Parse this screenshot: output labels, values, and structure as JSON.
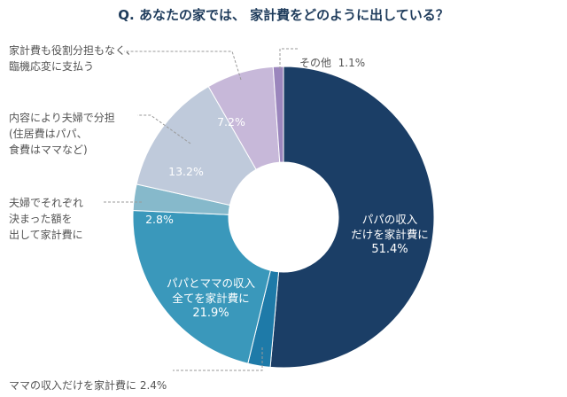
{
  "chart_data": {
    "type": "pie",
    "style": "donut",
    "title": "Q. あなたの家では、 家計費をどのように出している？",
    "slices": [
      {
        "label": "パパの収入\nだけを家計費に",
        "value": 51.4,
        "value_label": "51.4%",
        "color": "#1b3e66",
        "label_position": "inside"
      },
      {
        "label": "ママの収入だけを家計費に",
        "value": 2.4,
        "value_label": "2.4%",
        "color": "#1e7aa8",
        "label_position": "outside"
      },
      {
        "label": "パパとママの収入\n全てを家計費に",
        "value": 21.9,
        "value_label": "21.9%",
        "color": "#3a98bb",
        "label_position": "inside"
      },
      {
        "label": "夫婦でそれぞれ\n決まった額を\n出して家計費に",
        "value": 2.8,
        "value_label": "2.8%",
        "color": "#86b9cb",
        "label_position": "outside"
      },
      {
        "label": "内容により夫婦で分担\n(住居費はパパ、\n食費はママなど)",
        "value": 13.2,
        "value_label": "13.2%",
        "color": "#bfcadb",
        "label_position": "outside"
      },
      {
        "label": "家計費も役割分担もなく、\n臨機応変に支払う",
        "value": 7.2,
        "value_label": "7.2%",
        "color": "#c7b8d9",
        "label_position": "outside"
      },
      {
        "label": "その他",
        "value": 1.1,
        "value_label": "1.1%",
        "color": "#9b86bd",
        "label_position": "outside"
      }
    ]
  }
}
